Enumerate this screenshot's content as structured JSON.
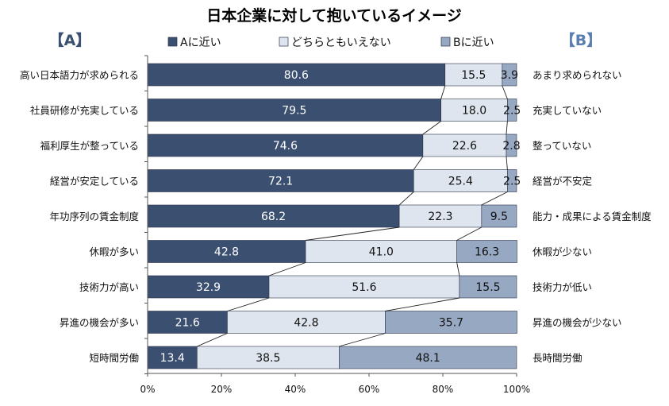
{
  "chart_data": {
    "type": "bar",
    "stacked": true,
    "orientation": "horizontal",
    "title": "日本企業に対して抱いているイメージ",
    "header_a": "【A】",
    "header_b": "【B】",
    "categories": [
      "高い日本語力が求められる",
      "社員研修が充実している",
      "福利厚生が整っている",
      "経営が安定している",
      "年功序列の賃金制度",
      "休暇が多い",
      "技術力が高い",
      "昇進の機会が多い",
      "短時間労働"
    ],
    "categories_b": [
      "あまり求められない",
      "充実していない",
      "整っていない",
      "経営が不安定",
      "能力・成果による賃金制度",
      "休暇が少ない",
      "技術力が低い",
      "昇進の機会が少ない",
      "長時間労働"
    ],
    "series": [
      {
        "name": "Aに近い",
        "values": [
          80.6,
          79.5,
          74.6,
          72.1,
          68.2,
          42.8,
          32.9,
          21.6,
          13.4
        ]
      },
      {
        "name": "どちらともいえない",
        "values": [
          15.5,
          18.0,
          22.6,
          25.4,
          22.3,
          41.0,
          51.6,
          42.8,
          38.5
        ]
      },
      {
        "name": "Bに近い",
        "values": [
          3.9,
          2.5,
          2.8,
          2.5,
          9.5,
          16.3,
          15.5,
          35.7,
          48.1
        ]
      }
    ],
    "value_labels": [
      [
        "80.6",
        "79.5",
        "74.6",
        "72.1",
        "68.2",
        "42.8",
        "32.9",
        "21.6",
        "13.4"
      ],
      [
        "15.5",
        "18.0",
        "22.6",
        "25.4",
        "22.3",
        "41.0",
        "51.6",
        "42.8",
        "38.5"
      ],
      [
        "3.9",
        "2.5",
        "2.8",
        "2.5",
        "9.5",
        "16.3",
        "15.5",
        "35.7",
        "48.1"
      ]
    ],
    "colors": [
      "#3b4f70",
      "#dfe5ee",
      "#97a8c3"
    ],
    "label_colors": [
      "#ffffff",
      "#111111",
      "#111111"
    ],
    "xticks": [
      "0%",
      "20%",
      "40%",
      "60%",
      "80%",
      "100%"
    ],
    "xlim": [
      0,
      100
    ],
    "legend_position": "top"
  }
}
